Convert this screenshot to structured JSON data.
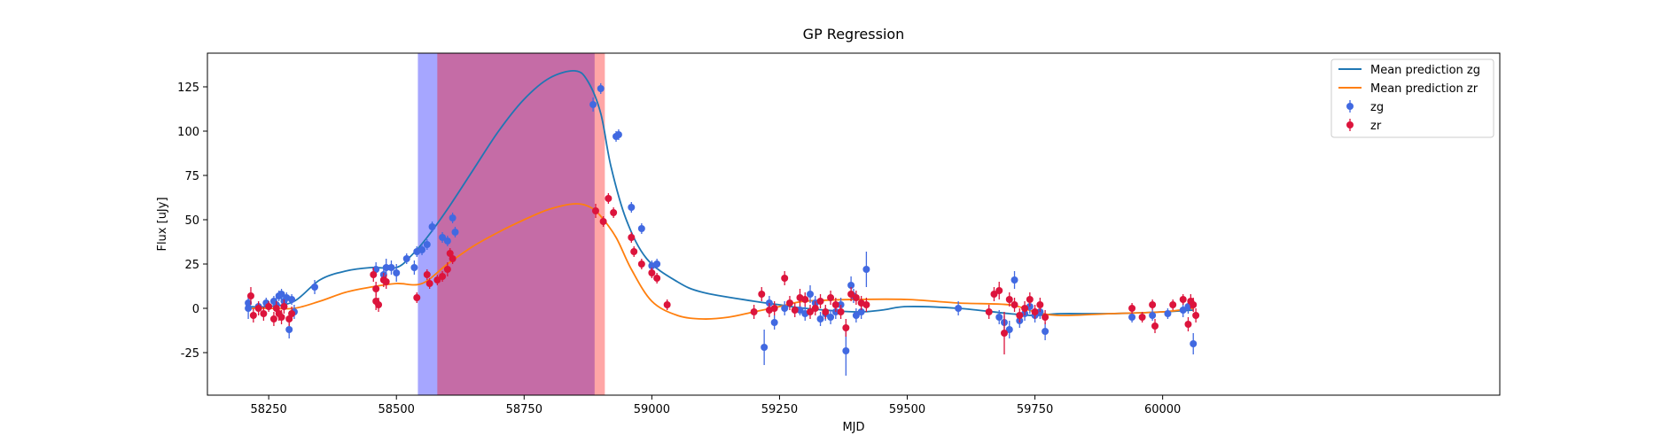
{
  "chart_data": {
    "type": "scatter",
    "title": "GP Regression",
    "xlabel": "MJD",
    "ylabel": "Flux [uJy]",
    "xlim": [
      58130,
      60660
    ],
    "ylim": [
      -49,
      144
    ],
    "xticks": [
      58250,
      58500,
      58750,
      59000,
      59250,
      59500,
      59750,
      60000
    ],
    "yticks": [
      -25,
      0,
      25,
      50,
      75,
      100,
      125
    ],
    "legend": {
      "placement": "top-right",
      "entries": [
        "Mean prediction zg",
        "Mean prediction zr",
        "zg",
        "zr"
      ]
    },
    "colors": {
      "zg_line": "#1f77b4",
      "zr_line": "#ff7f0e",
      "zg_points": "#4169e1",
      "zr_points": "#dc143c",
      "band_zg": "#0000ff",
      "band_zr": "#ff0000"
    },
    "spans": [
      {
        "series": "zg",
        "x_start": 58542,
        "x_end": 58888
      },
      {
        "series": "zr",
        "x_start": 58580,
        "x_end": 58908
      }
    ],
    "lines": [
      {
        "name": "Mean prediction zg",
        "color": "#1f77b4",
        "x": [
          58205,
          58250,
          58300,
          58350,
          58400,
          58450,
          58500,
          58530,
          58560,
          58600,
          58650,
          58700,
          58750,
          58800,
          58850,
          58875,
          58900,
          58920,
          58950,
          58990,
          59050,
          59100,
          59200,
          59250,
          59300,
          59400,
          59450,
          59500,
          59600,
          59700,
          59750,
          59800,
          59900,
          60000,
          60060
        ],
        "y": [
          1,
          1,
          4,
          16,
          21,
          23,
          23,
          30,
          40,
          56,
          78,
          100,
          118,
          130,
          134,
          128,
          110,
          80,
          50,
          28,
          15,
          9,
          4,
          2,
          0,
          -2,
          -1,
          1,
          0,
          -3,
          -4,
          -3,
          -3,
          -2,
          -1
        ]
      },
      {
        "name": "Mean prediction zr",
        "color": "#ff7f0e",
        "x": [
          58205,
          58250,
          58300,
          58350,
          58400,
          58450,
          58500,
          58550,
          58600,
          58650,
          58700,
          58750,
          58800,
          58850,
          58880,
          58900,
          58930,
          58960,
          59000,
          59050,
          59100,
          59150,
          59200,
          59250,
          59300,
          59400,
          59500,
          59600,
          59700,
          59750,
          59800,
          59900,
          60000,
          60060
        ],
        "y": [
          0,
          0,
          0,
          4,
          9,
          12,
          14,
          14,
          25,
          35,
          43,
          50,
          56,
          59,
          57,
          52,
          40,
          22,
          4,
          -4,
          -6,
          -5,
          -2,
          1,
          4,
          5,
          5,
          3,
          2,
          -2,
          -4,
          -3,
          -2,
          0
        ]
      }
    ],
    "series": [
      {
        "name": "zg",
        "color": "#4169e1",
        "points": [
          [
            58210,
            3,
            4
          ],
          [
            58210,
            0,
            6
          ],
          [
            58230,
            1,
            3
          ],
          [
            58245,
            3,
            3
          ],
          [
            58260,
            4,
            3
          ],
          [
            58265,
            2,
            4
          ],
          [
            58270,
            7,
            3
          ],
          [
            58275,
            8,
            3
          ],
          [
            58280,
            4,
            4
          ],
          [
            58285,
            6,
            3
          ],
          [
            58290,
            -12,
            5
          ],
          [
            58295,
            5,
            3
          ],
          [
            58300,
            -2,
            4
          ],
          [
            58340,
            12,
            4
          ],
          [
            58460,
            22,
            4
          ],
          [
            58475,
            19,
            4
          ],
          [
            58480,
            23,
            5
          ],
          [
            58490,
            23,
            4
          ],
          [
            58500,
            20,
            5
          ],
          [
            58520,
            28,
            3
          ],
          [
            58535,
            23,
            4
          ],
          [
            58540,
            32,
            3
          ],
          [
            58550,
            33,
            3
          ],
          [
            58560,
            36,
            3
          ],
          [
            58570,
            46,
            3
          ],
          [
            58590,
            40,
            3
          ],
          [
            58600,
            38,
            3
          ],
          [
            58610,
            51,
            3
          ],
          [
            58615,
            43,
            3
          ],
          [
            58885,
            115,
            4
          ],
          [
            58900,
            124,
            3
          ],
          [
            58930,
            97,
            3
          ],
          [
            58935,
            98,
            3
          ],
          [
            58960,
            57,
            3
          ],
          [
            58980,
            45,
            3
          ],
          [
            59000,
            24,
            3
          ],
          [
            59010,
            25,
            3
          ],
          [
            59220,
            -22,
            10
          ],
          [
            59230,
            3,
            4
          ],
          [
            59240,
            -8,
            4
          ],
          [
            59260,
            0,
            4
          ],
          [
            59290,
            -1,
            3
          ],
          [
            59300,
            -3,
            4
          ],
          [
            59310,
            8,
            5
          ],
          [
            59320,
            3,
            4
          ],
          [
            59330,
            -6,
            4
          ],
          [
            59340,
            -3,
            4
          ],
          [
            59350,
            -5,
            4
          ],
          [
            59360,
            -2,
            4
          ],
          [
            59370,
            2,
            4
          ],
          [
            59380,
            -24,
            14
          ],
          [
            59390,
            13,
            5
          ],
          [
            59395,
            7,
            4
          ],
          [
            59400,
            -4,
            4
          ],
          [
            59410,
            -2,
            4
          ],
          [
            59420,
            22,
            10
          ],
          [
            59600,
            0,
            4
          ],
          [
            59680,
            -5,
            4
          ],
          [
            59690,
            -8,
            4
          ],
          [
            59700,
            -12,
            5
          ],
          [
            59710,
            16,
            5
          ],
          [
            59720,
            -7,
            4
          ],
          [
            59730,
            -3,
            4
          ],
          [
            59740,
            1,
            4
          ],
          [
            59750,
            -4,
            4
          ],
          [
            59760,
            -2,
            4
          ],
          [
            59770,
            -13,
            5
          ],
          [
            59940,
            -5,
            3
          ],
          [
            59980,
            -4,
            3
          ],
          [
            60010,
            -3,
            3
          ],
          [
            60040,
            -1,
            4
          ],
          [
            60050,
            1,
            4
          ],
          [
            60060,
            -20,
            6
          ]
        ]
      },
      {
        "name": "zr",
        "color": "#dc143c",
        "points": [
          [
            58215,
            7,
            5
          ],
          [
            58220,
            -4,
            4
          ],
          [
            58230,
            0,
            4
          ],
          [
            58240,
            -3,
            4
          ],
          [
            58250,
            1,
            3
          ],
          [
            58260,
            -6,
            4
          ],
          [
            58265,
            0,
            4
          ],
          [
            58270,
            -3,
            4
          ],
          [
            58275,
            -5,
            4
          ],
          [
            58280,
            1,
            4
          ],
          [
            58290,
            -6,
            4
          ],
          [
            58295,
            -3,
            4
          ],
          [
            58455,
            19,
            4
          ],
          [
            58460,
            11,
            4
          ],
          [
            58460,
            4,
            5
          ],
          [
            58465,
            2,
            4
          ],
          [
            58475,
            16,
            4
          ],
          [
            58480,
            15,
            4
          ],
          [
            58540,
            6,
            3
          ],
          [
            58560,
            19,
            3
          ],
          [
            58565,
            14,
            3
          ],
          [
            58580,
            16,
            3
          ],
          [
            58590,
            18,
            3
          ],
          [
            58600,
            22,
            4
          ],
          [
            58605,
            31,
            3
          ],
          [
            58610,
            28,
            3
          ],
          [
            58890,
            55,
            4
          ],
          [
            58905,
            49,
            3
          ],
          [
            58915,
            62,
            3
          ],
          [
            58925,
            54,
            3
          ],
          [
            58960,
            40,
            3
          ],
          [
            58965,
            32,
            3
          ],
          [
            58980,
            25,
            3
          ],
          [
            59000,
            20,
            3
          ],
          [
            59010,
            17,
            3
          ],
          [
            59030,
            2,
            3
          ],
          [
            59200,
            -2,
            4
          ],
          [
            59215,
            8,
            4
          ],
          [
            59230,
            -1,
            4
          ],
          [
            59240,
            0,
            4
          ],
          [
            59260,
            17,
            4
          ],
          [
            59270,
            3,
            4
          ],
          [
            59280,
            -1,
            4
          ],
          [
            59290,
            6,
            5
          ],
          [
            59300,
            5,
            4
          ],
          [
            59310,
            -2,
            4
          ],
          [
            59320,
            0,
            4
          ],
          [
            59330,
            4,
            4
          ],
          [
            59340,
            -2,
            4
          ],
          [
            59350,
            6,
            4
          ],
          [
            59360,
            2,
            4
          ],
          [
            59370,
            -2,
            4
          ],
          [
            59380,
            -11,
            5
          ],
          [
            59390,
            8,
            4
          ],
          [
            59400,
            6,
            4
          ],
          [
            59410,
            3,
            4
          ],
          [
            59420,
            2,
            4
          ],
          [
            59660,
            -2,
            4
          ],
          [
            59670,
            8,
            4
          ],
          [
            59680,
            10,
            5
          ],
          [
            59690,
            -14,
            12
          ],
          [
            59700,
            5,
            4
          ],
          [
            59710,
            2,
            4
          ],
          [
            59720,
            -4,
            4
          ],
          [
            59730,
            0,
            4
          ],
          [
            59740,
            5,
            4
          ],
          [
            59750,
            -2,
            4
          ],
          [
            59760,
            2,
            4
          ],
          [
            59770,
            -5,
            4
          ],
          [
            59940,
            0,
            3
          ],
          [
            59960,
            -5,
            3
          ],
          [
            59980,
            2,
            3
          ],
          [
            59985,
            -10,
            4
          ],
          [
            60020,
            2,
            3
          ],
          [
            60040,
            5,
            3
          ],
          [
            60050,
            -9,
            4
          ],
          [
            60055,
            4,
            4
          ],
          [
            60060,
            2,
            4
          ],
          [
            60065,
            -4,
            4
          ]
        ]
      }
    ]
  }
}
